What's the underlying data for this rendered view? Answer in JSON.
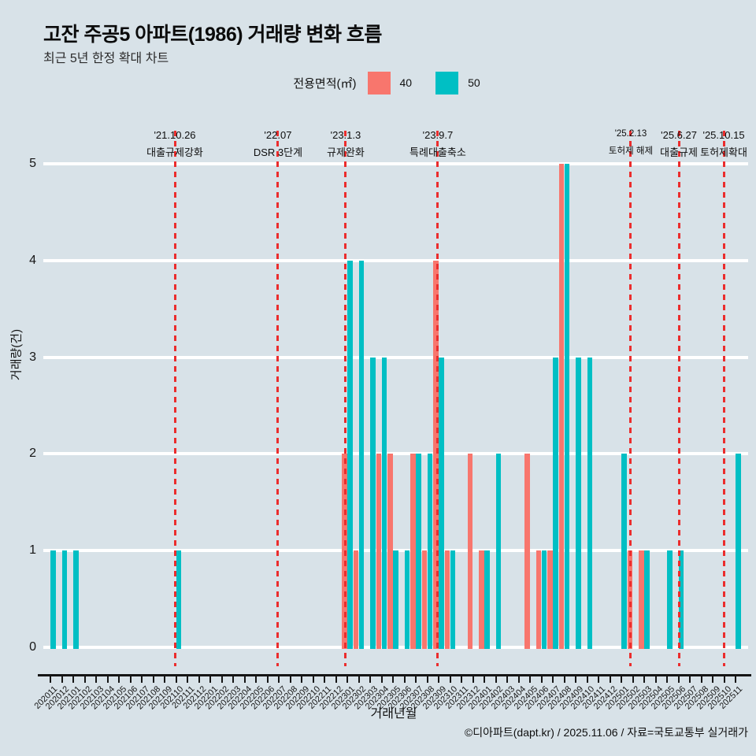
{
  "header": {
    "title": "고잔 주공5 아파트(1986) 거래량 변화 흐름",
    "subtitle": "최근 5년 한정 확대 차트"
  },
  "legend": {
    "title": "전용면적(㎡)",
    "items": [
      {
        "label": "40",
        "color": "#F8766D"
      },
      {
        "label": "50",
        "color": "#00BFC4"
      }
    ]
  },
  "chart_data": {
    "type": "bar",
    "title": "고잔 주공5 아파트(1986) 거래량 변화 흐름",
    "subtitle": "최근 5년 한정 확대 차트",
    "xlabel": "거래년월",
    "ylabel": "거래량(건)",
    "ylim": [
      0,
      5
    ],
    "yticks": [
      0,
      1,
      2,
      3,
      4,
      5
    ],
    "grid": "horizontal-white",
    "legend_position": "top-center",
    "categories": [
      "202011",
      "202012",
      "202101",
      "202102",
      "202103",
      "202104",
      "202105",
      "202106",
      "202107",
      "202108",
      "202109",
      "202110",
      "202111",
      "202112",
      "202201",
      "202202",
      "202203",
      "202204",
      "202205",
      "202206",
      "202207",
      "202208",
      "202209",
      "202210",
      "202211",
      "202212",
      "202301",
      "202302",
      "202303",
      "202304",
      "202305",
      "202306",
      "202307",
      "202308",
      "202309",
      "202310",
      "202311",
      "202312",
      "202401",
      "202402",
      "202403",
      "202404",
      "202405",
      "202406",
      "202407",
      "202408",
      "202409",
      "202410",
      "202411",
      "202412",
      "202501",
      "202502",
      "202503",
      "202504",
      "202505",
      "202506",
      "202507",
      "202508",
      "202509",
      "202510",
      "202511"
    ],
    "series": [
      {
        "name": "40",
        "color": "#F8766D",
        "values": [
          0,
          0,
          0,
          0,
          0,
          0,
          0,
          0,
          0,
          0,
          0,
          0,
          0,
          0,
          0,
          0,
          0,
          0,
          0,
          0,
          0,
          0,
          0,
          0,
          0,
          0,
          2,
          1,
          0,
          2,
          2,
          0,
          2,
          1,
          4,
          1,
          0,
          2,
          1,
          0,
          0,
          0,
          2,
          1,
          1,
          5,
          0,
          0,
          0,
          0,
          0,
          1,
          1,
          0,
          0,
          0,
          0,
          0,
          0,
          0,
          0
        ]
      },
      {
        "name": "50",
        "color": "#00BFC4",
        "values": [
          1,
          1,
          1,
          0,
          0,
          0,
          0,
          0,
          0,
          0,
          0,
          1,
          0,
          0,
          0,
          0,
          0,
          0,
          0,
          0,
          0,
          0,
          0,
          0,
          0,
          0,
          4,
          4,
          3,
          3,
          1,
          1,
          2,
          2,
          3,
          1,
          0,
          0,
          1,
          2,
          0,
          0,
          0,
          1,
          3,
          5,
          3,
          3,
          0,
          0,
          2,
          0,
          1,
          0,
          1,
          1,
          0,
          0,
          0,
          0,
          2
        ]
      }
    ],
    "annotations": [
      {
        "date": "'21.10.26",
        "label": "대출규제강화",
        "month_index": 11.38,
        "small": false
      },
      {
        "date": "'22.07",
        "label": "DSR 3단계",
        "month_index": 20.41,
        "small": false
      },
      {
        "date": "'23.1.3",
        "label": "규제완화",
        "month_index": 26.34,
        "small": false
      },
      {
        "date": "'23.9.7",
        "label": "특례대출축소",
        "month_index": 34.41,
        "small": false
      },
      {
        "date": "'25.2.13",
        "label": "토허제 해제",
        "month_index": 51.31,
        "small": true
      },
      {
        "date": "'25.6.27",
        "label": "대출규제",
        "month_index": 55.52,
        "small": false
      },
      {
        "date": "'25.10.15",
        "label": "토허제확대",
        "month_index": 59.45,
        "small": false
      }
    ]
  },
  "footer": {
    "text": "©디아파트(dapt.kr) / 2025.11.06 / 자료=국토교통부 실거래가"
  },
  "colors": {
    "background": "#D8E2E8",
    "gridline": "#FFFFFF",
    "annotation_line": "#EB2D2D",
    "axis": "#151515"
  }
}
